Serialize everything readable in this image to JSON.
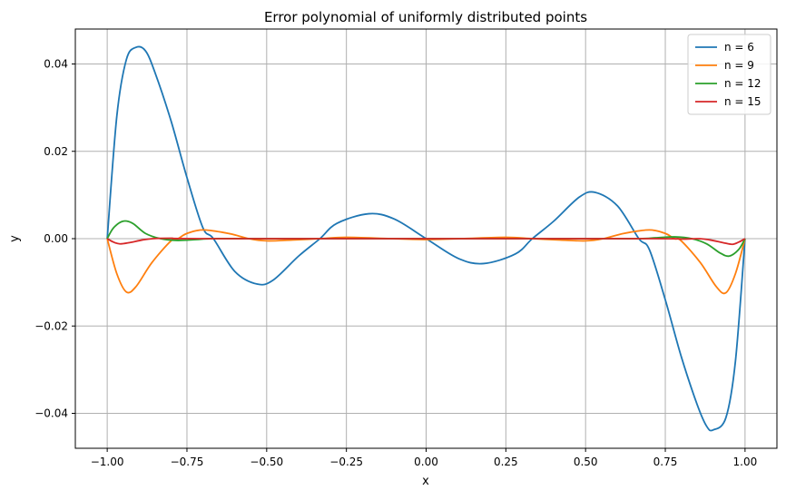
{
  "chart_data": {
    "type": "line",
    "title": "Error polynomial of uniformly distributed points",
    "xlabel": "x",
    "ylabel": "y",
    "xlim": [
      -1.1,
      1.1
    ],
    "ylim": [
      -0.048,
      0.048
    ],
    "xticks": [
      -1.0,
      -0.75,
      -0.5,
      -0.25,
      0.0,
      0.25,
      0.5,
      0.75,
      1.0
    ],
    "xtick_labels": [
      "−1.00",
      "−0.75",
      "−0.50",
      "−0.25",
      "0.00",
      "0.25",
      "0.50",
      "0.75",
      "1.00"
    ],
    "yticks": [
      -0.04,
      -0.02,
      0.0,
      0.02,
      0.04
    ],
    "ytick_labels": [
      "−0.04",
      "−0.02",
      "0.00",
      "0.02",
      "0.04"
    ],
    "grid": true,
    "legend_position": "top-right",
    "series": [
      {
        "name": "n = 6",
        "color": "#1f77b4",
        "points": [
          [
            -1.0,
            0.0
          ],
          [
            -0.97,
            0.028
          ],
          [
            -0.94,
            0.041
          ],
          [
            -0.91,
            0.0438
          ],
          [
            -0.88,
            0.043
          ],
          [
            -0.85,
            0.038
          ],
          [
            -0.8,
            0.027
          ],
          [
            -0.75,
            0.014
          ],
          [
            -0.7,
            0.0025
          ],
          [
            -0.667,
            0.0
          ],
          [
            -0.6,
            -0.0075
          ],
          [
            -0.53,
            -0.0104
          ],
          [
            -0.48,
            -0.0095
          ],
          [
            -0.4,
            -0.004
          ],
          [
            -0.333,
            0.0
          ],
          [
            -0.28,
            0.0035
          ],
          [
            -0.18,
            0.0057
          ],
          [
            -0.1,
            0.0045
          ],
          [
            0.0,
            0.0
          ],
          [
            0.1,
            -0.0045
          ],
          [
            0.18,
            -0.0057
          ],
          [
            0.28,
            -0.0035
          ],
          [
            0.333,
            0.0
          ],
          [
            0.4,
            0.004
          ],
          [
            0.48,
            0.0095
          ],
          [
            0.53,
            0.0106
          ],
          [
            0.6,
            0.0075
          ],
          [
            0.667,
            0.0
          ],
          [
            0.7,
            -0.0025
          ],
          [
            0.75,
            -0.014
          ],
          [
            0.8,
            -0.027
          ],
          [
            0.85,
            -0.038
          ],
          [
            0.88,
            -0.043
          ],
          [
            0.9,
            -0.0438
          ],
          [
            0.94,
            -0.041
          ],
          [
            0.97,
            -0.028
          ],
          [
            1.0,
            0.0
          ]
        ]
      },
      {
        "name": "n = 9",
        "color": "#ff7f0e",
        "points": [
          [
            -1.0,
            0.0
          ],
          [
            -0.97,
            -0.008
          ],
          [
            -0.94,
            -0.0122
          ],
          [
            -0.91,
            -0.011
          ],
          [
            -0.86,
            -0.0055
          ],
          [
            -0.8,
            -0.0005
          ],
          [
            -0.778,
            0.0
          ],
          [
            -0.75,
            0.0012
          ],
          [
            -0.7,
            0.002
          ],
          [
            -0.62,
            0.0012
          ],
          [
            -0.556,
            0.0
          ],
          [
            -0.5,
            -0.0005
          ],
          [
            -0.42,
            -0.0003
          ],
          [
            -0.333,
            0.0
          ],
          [
            -0.25,
            0.0003
          ],
          [
            -0.111,
            0.0
          ],
          [
            0.0,
            -0.0002
          ],
          [
            0.111,
            0.0
          ],
          [
            0.25,
            0.0003
          ],
          [
            0.333,
            0.0
          ],
          [
            0.42,
            -0.0003
          ],
          [
            0.5,
            -0.0005
          ],
          [
            0.556,
            0.0
          ],
          [
            0.62,
            0.0012
          ],
          [
            0.7,
            0.002
          ],
          [
            0.75,
            0.0012
          ],
          [
            0.778,
            0.0
          ],
          [
            0.8,
            -0.0005
          ],
          [
            0.86,
            -0.0055
          ],
          [
            0.91,
            -0.011
          ],
          [
            0.94,
            -0.0124
          ],
          [
            0.97,
            -0.008
          ],
          [
            1.0,
            0.0
          ]
        ]
      },
      {
        "name": "n = 12",
        "color": "#2ca02c",
        "points": [
          [
            -1.0,
            0.0
          ],
          [
            -0.98,
            0.0025
          ],
          [
            -0.95,
            0.004
          ],
          [
            -0.92,
            0.0035
          ],
          [
            -0.88,
            0.0012
          ],
          [
            -0.833,
            0.0
          ],
          [
            -0.78,
            -0.0004
          ],
          [
            -0.72,
            -0.0002
          ],
          [
            -0.667,
            0.0
          ],
          [
            -0.5,
            0.0
          ],
          [
            0.0,
            0.0
          ],
          [
            0.5,
            0.0
          ],
          [
            0.667,
            0.0
          ],
          [
            0.72,
            0.0002
          ],
          [
            0.78,
            0.0004
          ],
          [
            0.833,
            0.0
          ],
          [
            0.88,
            -0.0012
          ],
          [
            0.92,
            -0.0032
          ],
          [
            0.95,
            -0.004
          ],
          [
            0.98,
            -0.0025
          ],
          [
            1.0,
            0.0
          ]
        ]
      },
      {
        "name": "n = 15",
        "color": "#d62728",
        "points": [
          [
            -1.0,
            0.0
          ],
          [
            -0.98,
            -0.0008
          ],
          [
            -0.96,
            -0.0012
          ],
          [
            -0.93,
            -0.0009
          ],
          [
            -0.89,
            -0.0003
          ],
          [
            -0.857,
            0.0
          ],
          [
            -0.8,
            0.0001
          ],
          [
            -0.714,
            0.0
          ],
          [
            0.0,
            0.0
          ],
          [
            0.714,
            0.0
          ],
          [
            0.8,
            -0.0001
          ],
          [
            0.857,
            0.0
          ],
          [
            0.89,
            -0.0003
          ],
          [
            0.93,
            -0.0009
          ],
          [
            0.96,
            -0.0013
          ],
          [
            0.98,
            -0.0008
          ],
          [
            1.0,
            0.0
          ]
        ]
      }
    ]
  }
}
